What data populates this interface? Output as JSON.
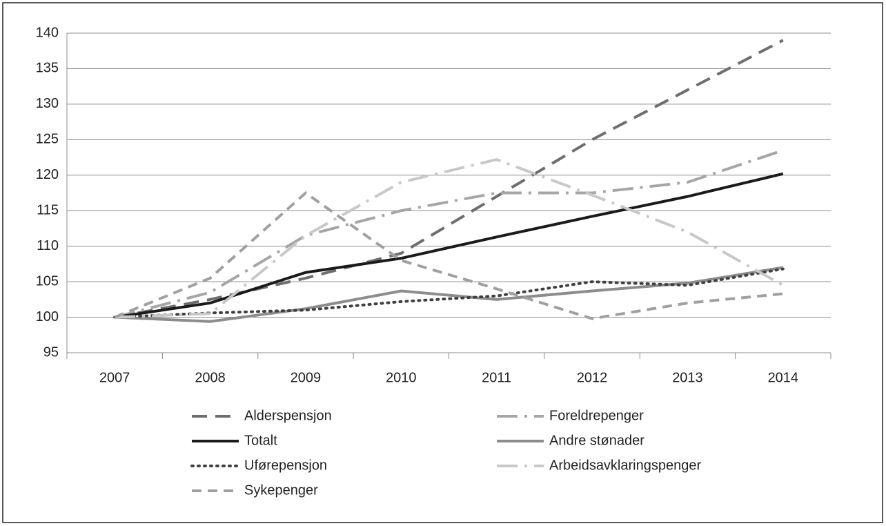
{
  "chart_data": {
    "type": "line",
    "categories": [
      "2007",
      "2008",
      "2009",
      "2010",
      "2011",
      "2012",
      "2013",
      "2014"
    ],
    "series": [
      {
        "name": "Alderspensjon",
        "color": "#6e6e6e",
        "style": "dash",
        "values": [
          100,
          102.5,
          105.5,
          109,
          117,
          125,
          132,
          139
        ]
      },
      {
        "name": "Foreldrepenger",
        "color": "#a6a6a6",
        "style": "long-dash-dot",
        "values": [
          100,
          103.5,
          111.5,
          115,
          117.5,
          117.5,
          119,
          123.5
        ]
      },
      {
        "name": "Totalt",
        "color": "#1a1a1a",
        "style": "solid",
        "values": [
          100,
          102,
          106.3,
          108.3,
          111.3,
          114.2,
          117,
          120.2
        ]
      },
      {
        "name": "Andre stønader",
        "color": "#8c8c8c",
        "style": "solid",
        "values": [
          100,
          99.4,
          101.2,
          103.7,
          102.5,
          103.7,
          104.8,
          107
        ]
      },
      {
        "name": "Uførepensjon",
        "color": "#404040",
        "style": "dot",
        "values": [
          100,
          100.6,
          101,
          102.2,
          103,
          105,
          104.5,
          106.8
        ]
      },
      {
        "name": "Arbeidsavklaringspenger",
        "color": "#c8c8c8",
        "style": "long-dash-dot",
        "values": [
          100,
          100.5,
          111.5,
          119,
          122.2,
          117.2,
          112,
          104.5
        ]
      },
      {
        "name": "Sykepenger",
        "color": "#a0a0a0",
        "style": "short-dash",
        "values": [
          100,
          105.5,
          117.5,
          108,
          104,
          99.8,
          102,
          103.3
        ]
      }
    ],
    "ylim": [
      95,
      140
    ],
    "yticks": [
      95,
      100,
      105,
      110,
      115,
      120,
      125,
      130,
      135,
      140
    ],
    "grid": true,
    "legend": "bottom"
  }
}
